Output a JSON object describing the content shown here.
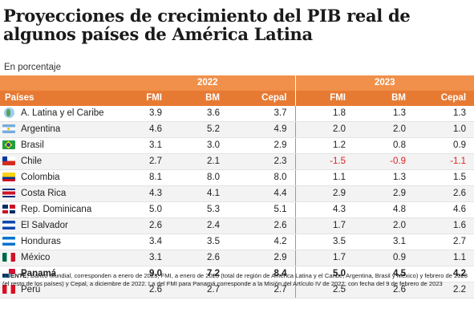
{
  "title": "Proyecciones de crecimiento del PIB real de algunos países de América Latina",
  "subtitle": "En porcentaje",
  "chart_data": {
    "type": "table",
    "years": [
      "2022",
      "2023"
    ],
    "columns": [
      "Países",
      "FMI",
      "BM",
      "Cepal",
      "FMI",
      "BM",
      "Cepal"
    ],
    "rows": [
      {
        "flag": "latam",
        "country": "A. Latina y el Caribe",
        "v2022": [
          "3.9",
          "3.6",
          "3.7"
        ],
        "v2023": [
          "1.8",
          "1.3",
          "1.3"
        ]
      },
      {
        "flag": "argentina",
        "country": "Argentina",
        "v2022": [
          "4.6",
          "5.2",
          "4.9"
        ],
        "v2023": [
          "2.0",
          "2.0",
          "1.0"
        ]
      },
      {
        "flag": "brasil",
        "country": "Brasil",
        "v2022": [
          "3.1",
          "3.0",
          "2.9"
        ],
        "v2023": [
          "1.2",
          "0.8",
          "0.9"
        ]
      },
      {
        "flag": "chile",
        "country": "Chile",
        "v2022": [
          "2.7",
          "2.1",
          "2.3"
        ],
        "v2023": [
          "-1.5",
          "-0.9",
          "-1.1"
        ]
      },
      {
        "flag": "colombia",
        "country": "Colombia",
        "v2022": [
          "8.1",
          "8.0",
          "8.0"
        ],
        "v2023": [
          "1.1",
          "1.3",
          "1.5"
        ]
      },
      {
        "flag": "costarica",
        "country": "Costa Rica",
        "v2022": [
          "4.3",
          "4.1",
          "4.4"
        ],
        "v2023": [
          "2.9",
          "2.9",
          "2.6"
        ]
      },
      {
        "flag": "rdominicana",
        "country": "Rep. Dominicana",
        "v2022": [
          "5.0",
          "5.3",
          "5.1"
        ],
        "v2023": [
          "4.3",
          "4.8",
          "4.6"
        ]
      },
      {
        "flag": "elsalvador",
        "country": "El Salvador",
        "v2022": [
          "2.6",
          "2.4",
          "2.6"
        ],
        "v2023": [
          "1.7",
          "2.0",
          "1.6"
        ]
      },
      {
        "flag": "honduras",
        "country": "Honduras",
        "v2022": [
          "3.4",
          "3.5",
          "4.2"
        ],
        "v2023": [
          "3.5",
          "3.1",
          "2.7"
        ]
      },
      {
        "flag": "mexico",
        "country": "México",
        "v2022": [
          "3.1",
          "2.6",
          "2.9"
        ],
        "v2023": [
          "1.7",
          "0.9",
          "1.1"
        ]
      },
      {
        "flag": "panama",
        "country": "Panamá",
        "v2022": [
          "9.0",
          "7.2",
          "8.4"
        ],
        "v2023": [
          "5.0",
          "4.5",
          "4.2"
        ],
        "bold": true
      },
      {
        "flag": "peru",
        "country": "Perú",
        "v2022": [
          "2.6",
          "2.7",
          "2.7"
        ],
        "v2023": [
          "2.5",
          "2.6",
          "2.2"
        ]
      }
    ]
  },
  "footer_label": "FUENTE:",
  "footer_text": " Banco Mundial, corresponden a enero de 2023; FMI, a enero de 2023 (total de región de América Latina y el Caribe, Argentina, Brasil y México) y febrero de 2023 (el resto de los países) y Cepal, a diciembre de 2022. La del FMI para Panamá corresponde a la Misión del Artículo IV de 2022, con fecha del 9 de febrero de 2023",
  "colors": {
    "header_light": "#f0904a",
    "header_dark": "#e77a33",
    "negative": "#d22222"
  }
}
